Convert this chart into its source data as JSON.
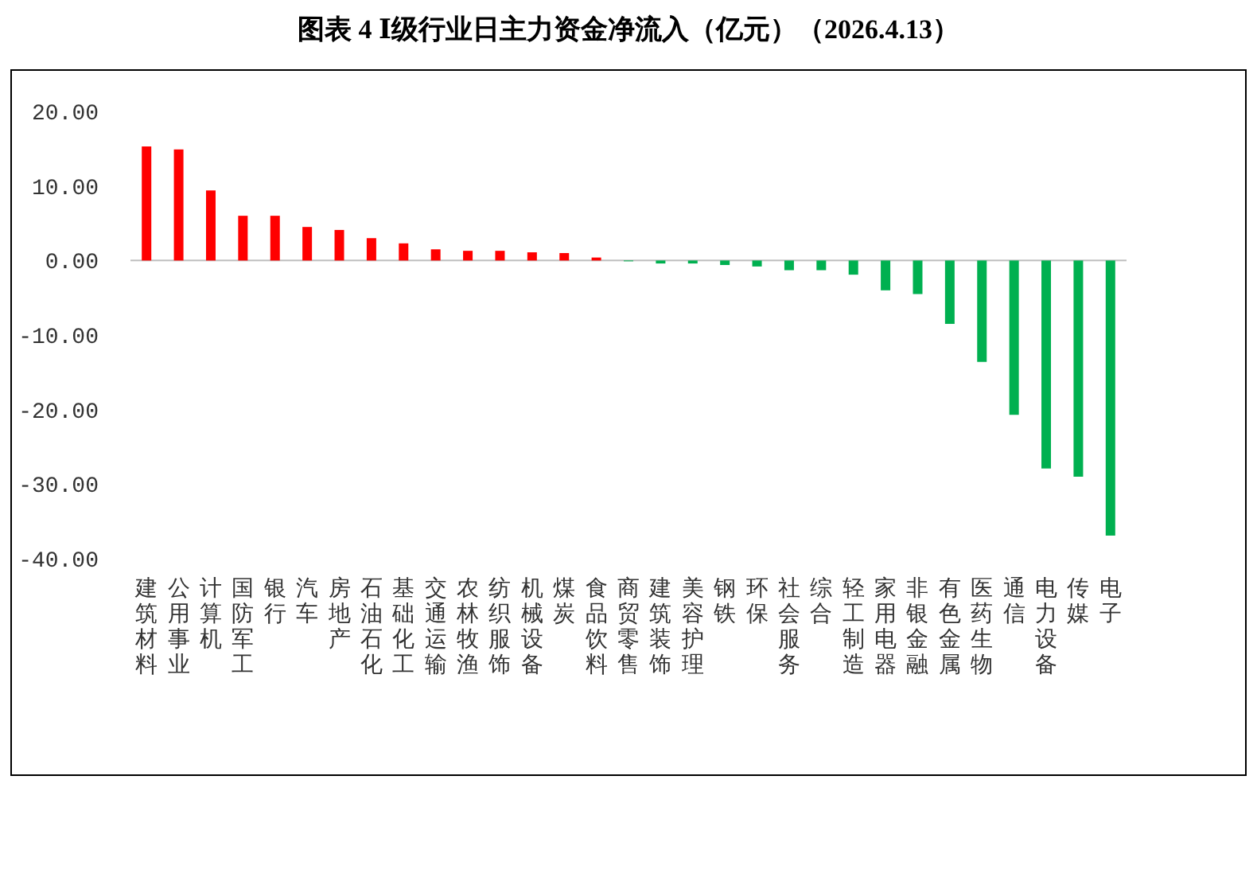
{
  "chart_data": {
    "type": "bar",
    "title": "图表 4  Ⅰ级行业日主力资金净流入（亿元）（2026.4.13）",
    "categories": [
      "建筑材料",
      "公用事业",
      "计算机",
      "国防军工",
      "银行",
      "汽车",
      "房地产",
      "石油石化",
      "基础化工",
      "交通运输",
      "农林牧渔",
      "纺织服饰",
      "机械设备",
      "煤炭",
      "食品饮料",
      "商贸零售",
      "建筑装饰",
      "美容护理",
      "钢铁",
      "环保",
      "社会服务",
      "综合",
      "轻工制造",
      "家用电器",
      "非银金融",
      "有色金属",
      "医药生物",
      "通信",
      "电力设备",
      "传媒",
      "电子"
    ],
    "values": [
      15.3,
      14.9,
      9.4,
      6.0,
      6.0,
      4.5,
      4.1,
      3.0,
      2.3,
      1.5,
      1.3,
      1.3,
      1.1,
      1.0,
      0.4,
      -0.1,
      -0.4,
      -0.4,
      -0.6,
      -0.8,
      -1.3,
      -1.3,
      -1.9,
      -4.0,
      -4.5,
      -8.5,
      -13.6,
      -20.7,
      -27.9,
      -29.0,
      -36.9
    ],
    "colors": [
      "#ff0000",
      "#ff0000",
      "#ff0000",
      "#ff0000",
      "#ff0000",
      "#ff0000",
      "#ff0000",
      "#ff0000",
      "#ff0000",
      "#ff0000",
      "#ff0000",
      "#ff0000",
      "#ff0000",
      "#ff0000",
      "#ff0000",
      "#00b050",
      "#00b050",
      "#00b050",
      "#00b050",
      "#00b050",
      "#00b050",
      "#00b050",
      "#00b050",
      "#00b050",
      "#00b050",
      "#00b050",
      "#00b050",
      "#00b050",
      "#00b050",
      "#00b050",
      "#00b050"
    ],
    "ylim": [
      -40,
      20
    ],
    "yticks": [
      {
        "value": 20,
        "label": "20.00"
      },
      {
        "value": 10,
        "label": "10.00"
      },
      {
        "value": 0,
        "label": "0.00"
      },
      {
        "value": -10,
        "label": "-10.00"
      },
      {
        "value": -20,
        "label": "-20.00"
      },
      {
        "value": -30,
        "label": "-30.00"
      },
      {
        "value": -40,
        "label": "-40.00"
      }
    ]
  }
}
